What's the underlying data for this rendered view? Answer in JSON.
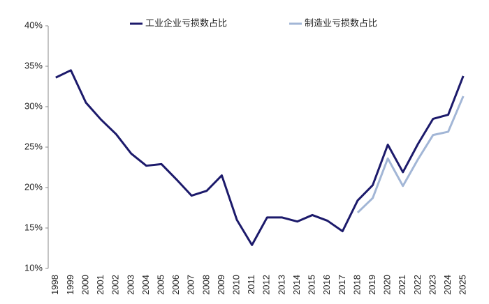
{
  "chart_data": {
    "type": "line",
    "categories": [
      "1998",
      "1999",
      "2000",
      "2001",
      "2002",
      "2003",
      "2004",
      "2005",
      "2006",
      "2007",
      "2008",
      "2009",
      "2010",
      "2011",
      "2012",
      "2013",
      "2014",
      "2015",
      "2016",
      "2017",
      "2018",
      "2019",
      "2020",
      "2021",
      "2022",
      "2023",
      "2024",
      "2025"
    ],
    "series": [
      {
        "name": "工业企业亏损数占比",
        "color": "#1c1a6b",
        "values": [
          33.6,
          34.5,
          30.5,
          28.4,
          26.6,
          24.2,
          22.7,
          22.9,
          21.0,
          19.0,
          19.6,
          21.5,
          16.0,
          12.9,
          16.3,
          16.3,
          15.8,
          16.6,
          15.9,
          14.6,
          18.4,
          20.3,
          25.3,
          21.9,
          25.4,
          28.5,
          29.0,
          33.8
        ]
      },
      {
        "name": "制造业亏损数占比",
        "color": "#a2b6d6",
        "values": [
          null,
          null,
          null,
          null,
          null,
          null,
          null,
          null,
          null,
          null,
          null,
          null,
          null,
          null,
          null,
          null,
          null,
          null,
          null,
          null,
          16.9,
          18.7,
          23.6,
          20.2,
          23.5,
          26.5,
          26.9,
          31.3
        ]
      }
    ],
    "ylim": [
      10,
      40
    ],
    "yticks": [
      {
        "value": 10,
        "label": "10%"
      },
      {
        "value": 15,
        "label": "15%"
      },
      {
        "value": 20,
        "label": "20%"
      },
      {
        "value": 25,
        "label": "25%"
      },
      {
        "value": 30,
        "label": "30%"
      },
      {
        "value": 35,
        "label": "35%"
      },
      {
        "value": 40,
        "label": "40%"
      }
    ],
    "grid": false
  }
}
